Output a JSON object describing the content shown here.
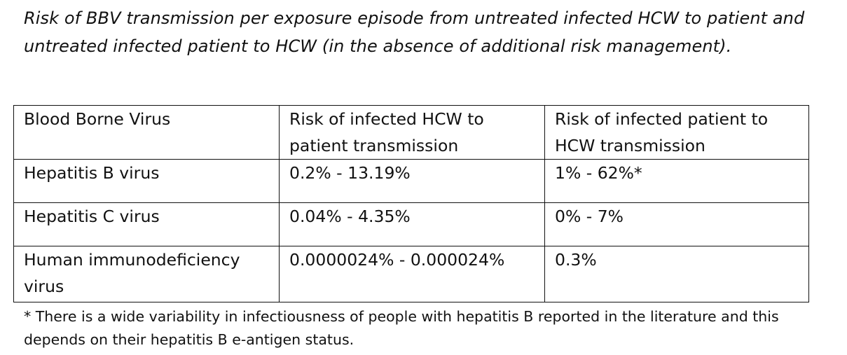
{
  "caption": "Risk of BBV transmission per exposure episode from untreated infected HCW to patient and untreated infected patient to HCW (in the absence of additional risk management).",
  "table": {
    "headers": [
      "Blood Borne Virus",
      "Risk of infected HCW to patient transmission",
      "Risk of infected patient to HCW transmission"
    ],
    "rows": [
      [
        "Hepatitis B virus",
        "0.2% - 13.19%",
        "1% - 62%*"
      ],
      [
        "Hepatitis C virus",
        "0.04% - 4.35%",
        "0% - 7%"
      ],
      [
        "Human immunodeficiency virus",
        "0.0000024% - 0.000024%",
        "0.3%"
      ]
    ]
  },
  "footnote": "* There is a wide variability in infectiousness of people with hepatitis B reported in the literature and this depends on their hepatitis B e-antigen status."
}
